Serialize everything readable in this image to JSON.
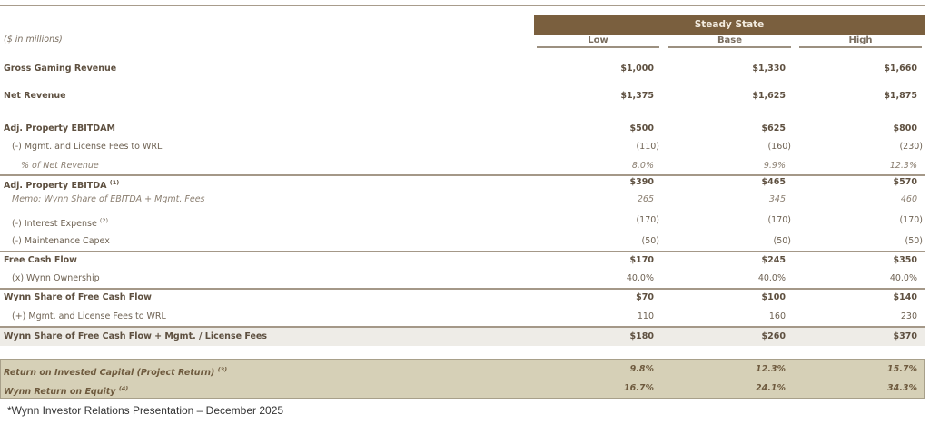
{
  "header": {
    "group": "Steady State",
    "units": "($ in millions)",
    "columns": [
      "Low",
      "Base",
      "High"
    ]
  },
  "rows": [
    {
      "label": "Gross Gaming Revenue",
      "values": [
        "$1,000",
        "$1,330",
        "$1,660"
      ]
    },
    {
      "label": "Net Revenue",
      "values": [
        "$1,375",
        "$1,625",
        "$1,875"
      ]
    },
    {
      "label": "Adj. Property EBITDAM",
      "values": [
        "$500",
        "$625",
        "$800"
      ]
    },
    {
      "label": "(-) Mgmt. and License Fees to WRL",
      "values": [
        "(110)",
        "(160)",
        "(230)"
      ]
    },
    {
      "label": "% of Net Revenue",
      "values": [
        "8.0%",
        "9.9%",
        "12.3%"
      ]
    },
    {
      "label": "Adj. Property EBITDA",
      "note": "(1)",
      "values": [
        "$390",
        "$465",
        "$570"
      ]
    },
    {
      "label": "Memo: Wynn Share of EBITDA + Mgmt. Fees",
      "values": [
        "265",
        "345",
        "460"
      ]
    },
    {
      "label": "(-) Interest Expense",
      "note": "(2)",
      "values": [
        "(170)",
        "(170)",
        "(170)"
      ]
    },
    {
      "label": "(-) Maintenance Capex",
      "values": [
        "(50)",
        "(50)",
        "(50)"
      ]
    },
    {
      "label": "Free Cash Flow",
      "values": [
        "$170",
        "$245",
        "$350"
      ]
    },
    {
      "label": "(x) Wynn Ownership",
      "values": [
        "40.0%",
        "40.0%",
        "40.0%"
      ]
    },
    {
      "label": "Wynn Share of Free Cash Flow",
      "values": [
        "$70",
        "$100",
        "$140"
      ]
    },
    {
      "label": "(+) Mgmt. and License Fees to WRL",
      "values": [
        "110",
        "160",
        "230"
      ]
    },
    {
      "label": "Wynn Share of Free Cash Flow + Mgmt. / License Fees",
      "values": [
        "$180",
        "$260",
        "$370"
      ]
    },
    {
      "label": "Return on Invested Capital (Project Return)",
      "note": "(3)",
      "values": [
        "9.8%",
        "12.3%",
        "15.7%"
      ]
    },
    {
      "label": "Wynn Return on Equity",
      "note": "(4)",
      "values": [
        "16.7%",
        "24.1%",
        "34.3%"
      ]
    }
  ],
  "footer": "*Wynn Investor Relations Presentation – December 2025",
  "colors": {
    "header_band": "#7a5f3e",
    "returns_bg": "#d6d0b7",
    "total_bg": "#eeece7"
  }
}
